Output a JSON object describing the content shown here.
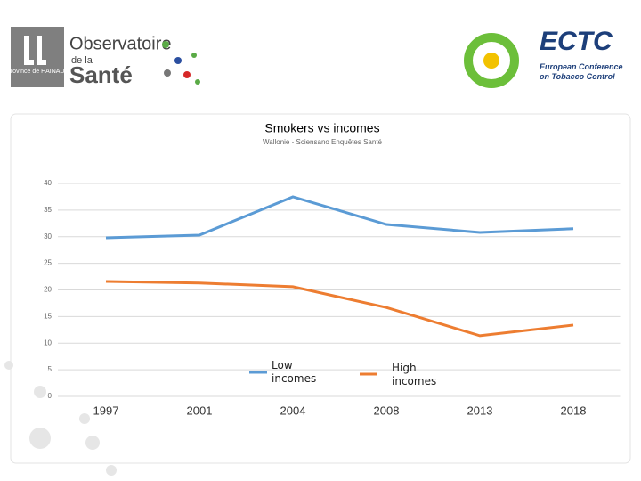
{
  "logos": {
    "left": {
      "region": "Province de HAINAUT",
      "name": "Observatoire",
      "sub": "de la",
      "main": "Santé"
    },
    "right": {
      "acronym": "ECTC",
      "full": "European Conference on Tobacco Control"
    }
  },
  "chart_data": {
    "type": "line",
    "title": "Smokers vs incomes",
    "subtitle": "Wallonie - Sciensano Enquêtes Santé",
    "categories": [
      "1997",
      "2001",
      "2004",
      "2008",
      "2013",
      "2018"
    ],
    "series": [
      {
        "name": "Low incomes",
        "color": "#5b9bd5",
        "values": [
          29.8,
          30.3,
          37.5,
          32.3,
          30.8,
          31.5
        ]
      },
      {
        "name": "High incomes",
        "color": "#ed7d31",
        "values": [
          21.6,
          21.3,
          20.6,
          16.7,
          11.4,
          13.4
        ]
      }
    ],
    "ylim": [
      0,
      40
    ],
    "yticks": [
      0,
      5,
      10,
      15,
      20,
      25,
      30,
      35,
      40
    ],
    "grid": true
  }
}
